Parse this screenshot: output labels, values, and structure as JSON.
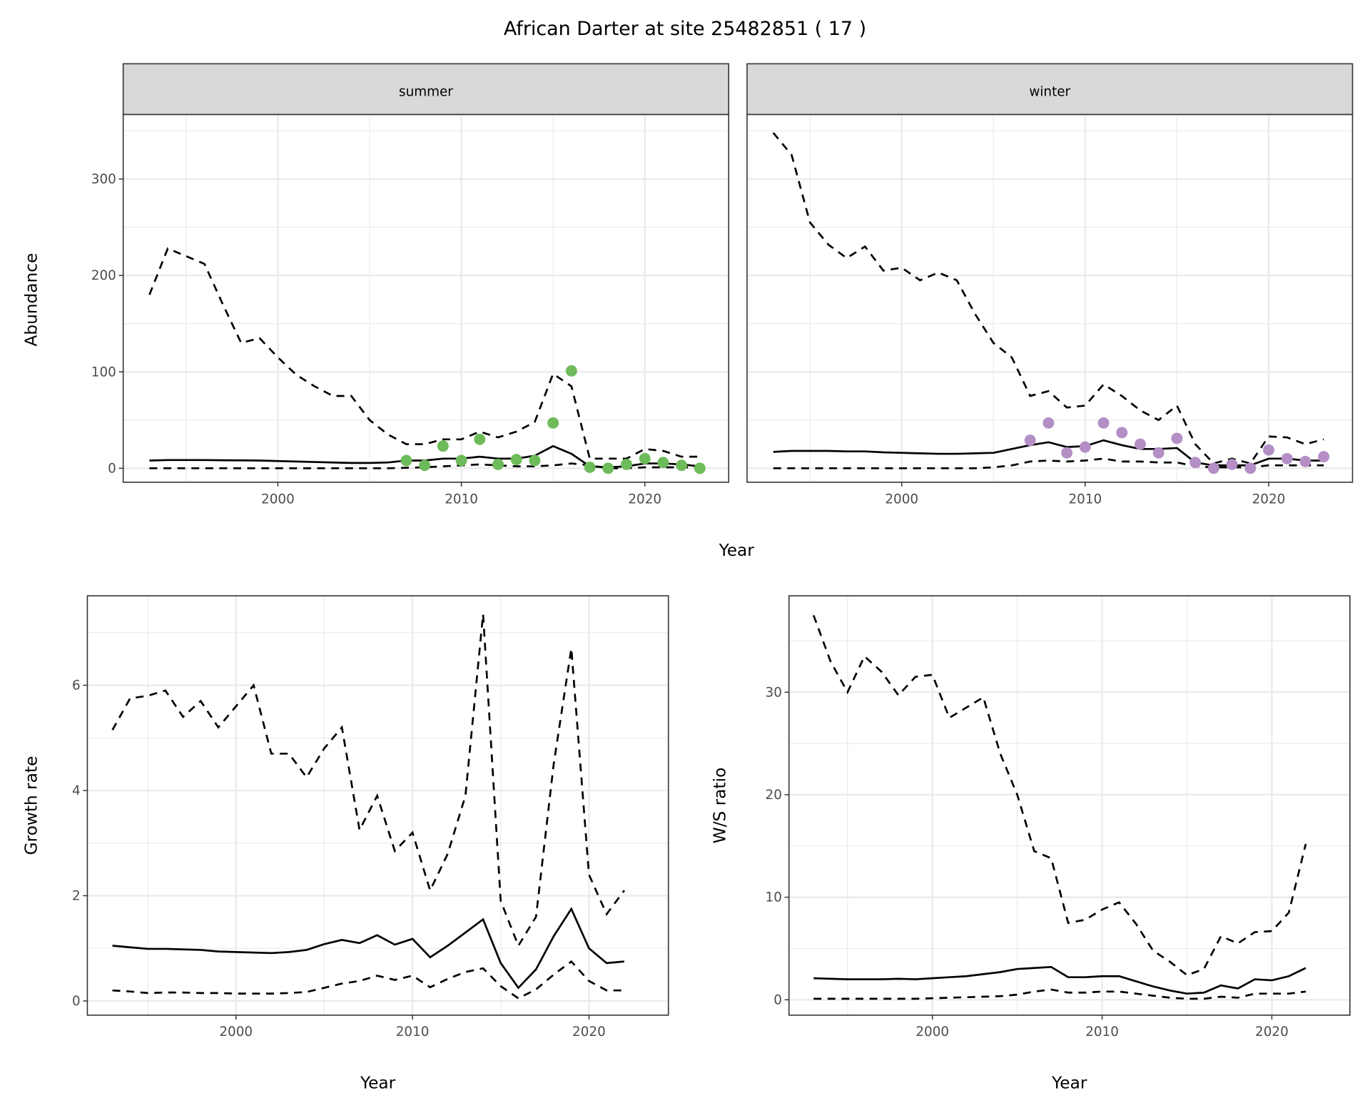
{
  "title": "African Darter at site 25482851 ( 17 )",
  "colors": {
    "summer": "#6dbb5a",
    "winter": "#b48fc6",
    "line": "#000000",
    "grid": "#ebebeb",
    "strip": "#d9d9d9"
  },
  "chart_data": [
    {
      "type": "line",
      "panel": "summer",
      "strip_label": "summer",
      "xlabel": "Year",
      "ylabel": "Abundance",
      "xlim": [
        1991.57,
        2024.57
      ],
      "ylim": [
        -14.5,
        367
      ],
      "xticks": [
        2000,
        2010,
        2020
      ],
      "yticks": [
        0,
        100,
        200,
        300
      ],
      "x": [
        1993,
        1994,
        1995,
        1996,
        1997,
        1998,
        1999,
        2000,
        2001,
        2002,
        2003,
        2004,
        2005,
        2006,
        2007,
        2008,
        2009,
        2010,
        2011,
        2012,
        2013,
        2014,
        2015,
        2016,
        2017,
        2018,
        2019,
        2020,
        2021,
        2022,
        2023
      ],
      "series": [
        {
          "name": "mean",
          "style": "solid",
          "values": [
            8,
            8.5,
            8.5,
            8.5,
            8.3,
            8.2,
            8,
            7.5,
            7,
            6.5,
            6,
            5.5,
            5.5,
            6,
            8,
            8,
            10,
            10,
            12,
            10,
            10,
            13,
            23,
            15,
            2,
            1,
            2,
            5,
            5,
            4,
            2
          ]
        },
        {
          "name": "upper",
          "style": "dashed",
          "values": [
            180,
            228,
            220,
            212,
            170,
            130,
            135,
            115,
            97,
            85,
            75,
            75,
            50,
            35,
            25,
            25,
            30,
            30,
            38,
            32,
            38,
            48,
            98,
            85,
            10,
            10,
            10,
            20,
            18,
            12,
            12
          ]
        },
        {
          "name": "lower",
          "style": "dashed",
          "values": [
            0,
            0,
            0,
            0,
            0,
            0,
            0,
            0,
            0,
            0,
            0,
            0,
            0,
            0,
            0.5,
            1,
            2,
            3,
            4,
            3,
            2,
            2,
            3,
            5,
            3,
            0,
            0,
            1,
            1,
            1,
            1
          ]
        }
      ],
      "points": {
        "x": [
          2007,
          2008,
          2009,
          2010,
          2011,
          2012,
          2013,
          2014,
          2015,
          2016,
          2017,
          2018,
          2019,
          2020,
          2021,
          2022,
          2023
        ],
        "y": [
          8,
          3,
          23,
          8,
          30,
          4,
          9,
          8,
          47,
          101,
          1,
          0,
          4,
          10,
          6,
          3,
          0
        ]
      }
    },
    {
      "type": "line",
      "panel": "winter",
      "strip_label": "winter",
      "xlim": [
        1991.57,
        2024.57
      ],
      "ylim": [
        -14.5,
        367
      ],
      "xticks": [
        2000,
        2010,
        2020
      ],
      "x": [
        1993,
        1994,
        1995,
        1996,
        1997,
        1998,
        1999,
        2000,
        2001,
        2002,
        2003,
        2004,
        2005,
        2006,
        2007,
        2008,
        2009,
        2010,
        2011,
        2012,
        2013,
        2014,
        2015,
        2016,
        2017,
        2018,
        2019,
        2020,
        2021,
        2022,
        2023
      ],
      "series": [
        {
          "name": "mean",
          "style": "solid",
          "values": [
            17,
            18,
            18,
            18,
            17.5,
            17.5,
            16.5,
            16,
            15.5,
            15,
            15,
            15.5,
            16,
            20,
            24,
            27,
            22,
            23,
            29,
            24,
            20,
            20,
            21,
            6,
            3,
            3,
            3,
            10,
            10,
            8,
            8
          ]
        },
        {
          "name": "upper",
          "style": "dashed",
          "values": [
            348,
            325,
            255,
            232,
            218,
            230,
            205,
            208,
            195,
            203,
            195,
            160,
            130,
            115,
            75,
            80,
            63,
            65,
            87,
            75,
            60,
            50,
            65,
            25,
            5,
            10,
            5,
            33,
            32,
            25,
            30
          ]
        },
        {
          "name": "lower",
          "style": "dashed",
          "values": [
            0,
            0,
            0,
            0,
            0,
            0,
            0,
            0,
            0,
            0,
            0,
            0,
            1,
            3,
            7,
            8,
            7,
            8,
            10,
            7,
            7,
            6,
            6,
            2,
            1,
            1,
            1,
            3,
            3,
            3,
            3
          ]
        }
      ],
      "points": {
        "x": [
          2007,
          2008,
          2009,
          2010,
          2011,
          2012,
          2013,
          2014,
          2015,
          2016,
          2017,
          2018,
          2019,
          2020,
          2021,
          2022,
          2023
        ],
        "y": [
          29,
          47,
          16,
          22,
          47,
          37,
          25,
          16,
          31,
          6,
          0,
          4,
          0,
          19,
          10,
          7,
          12
        ]
      }
    },
    {
      "type": "line",
      "panel": "growth",
      "xlabel": "Year",
      "ylabel": "Growth rate",
      "xlim": [
        1991.58,
        2024.5
      ],
      "ylim": [
        -0.27,
        7.7
      ],
      "xticks": [
        2000,
        2010,
        2020
      ],
      "yticks": [
        0,
        2,
        4,
        6
      ],
      "x": [
        1993,
        1994,
        1995,
        1996,
        1997,
        1998,
        1999,
        2000,
        2001,
        2002,
        2003,
        2004,
        2005,
        2006,
        2007,
        2008,
        2009,
        2010,
        2011,
        2012,
        2013,
        2014,
        2015,
        2016,
        2017,
        2018,
        2019,
        2020,
        2021,
        2022
      ],
      "series": [
        {
          "name": "mean",
          "style": "solid",
          "values": [
            1.05,
            1.02,
            0.99,
            0.99,
            0.98,
            0.97,
            0.94,
            0.93,
            0.92,
            0.91,
            0.93,
            0.97,
            1.08,
            1.16,
            1.1,
            1.25,
            1.07,
            1.18,
            0.83,
            1.05,
            1.3,
            1.55,
            0.72,
            0.25,
            0.6,
            1.23,
            1.75,
            1.0,
            0.72,
            0.75
          ]
        },
        {
          "name": "upper",
          "style": "dashed",
          "values": [
            5.15,
            5.75,
            5.8,
            5.9,
            5.4,
            5.7,
            5.2,
            5.6,
            6.0,
            4.7,
            4.7,
            4.25,
            4.8,
            5.2,
            3.25,
            3.9,
            2.85,
            3.2,
            2.1,
            2.8,
            3.9,
            7.35,
            1.9,
            1.05,
            1.6,
            4.5,
            6.7,
            2.4,
            1.65,
            2.1
          ]
        },
        {
          "name": "lower",
          "style": "dashed",
          "values": [
            0.2,
            0.18,
            0.15,
            0.16,
            0.16,
            0.15,
            0.15,
            0.14,
            0.14,
            0.14,
            0.15,
            0.17,
            0.25,
            0.33,
            0.38,
            0.48,
            0.4,
            0.48,
            0.26,
            0.42,
            0.55,
            0.62,
            0.28,
            0.05,
            0.22,
            0.5,
            0.75,
            0.38,
            0.2,
            0.2
          ]
        }
      ]
    },
    {
      "type": "line",
      "panel": "ws",
      "xlabel": "Year",
      "ylabel": "W/S ratio",
      "xlim": [
        1991.55,
        2024.6
      ],
      "ylim": [
        -1.5,
        39.4
      ],
      "xticks": [
        2000,
        2010,
        2020
      ],
      "yticks": [
        0,
        10,
        20,
        30
      ],
      "x": [
        1993,
        1994,
        1995,
        1996,
        1997,
        1998,
        1999,
        2000,
        2001,
        2002,
        2003,
        2004,
        2005,
        2006,
        2007,
        2008,
        2009,
        2010,
        2011,
        2012,
        2013,
        2014,
        2015,
        2016,
        2017,
        2018,
        2019,
        2020,
        2021,
        2022
      ],
      "series": [
        {
          "name": "mean",
          "style": "solid",
          "values": [
            2.1,
            2.05,
            2.0,
            2.0,
            2.0,
            2.05,
            2.0,
            2.1,
            2.2,
            2.3,
            2.5,
            2.7,
            3.0,
            3.1,
            3.2,
            2.2,
            2.2,
            2.3,
            2.3,
            1.8,
            1.3,
            0.9,
            0.6,
            0.7,
            1.4,
            1.1,
            2.0,
            1.9,
            2.3,
            3.1
          ]
        },
        {
          "name": "upper",
          "style": "dashed",
          "values": [
            37.5,
            33,
            30,
            33.5,
            32,
            29.7,
            31.5,
            31.7,
            27.5,
            28.5,
            29.5,
            24,
            20,
            14.5,
            13.8,
            7.5,
            7.8,
            8.8,
            9.5,
            7.4,
            4.8,
            3.7,
            2.4,
            3.0,
            6.2,
            5.5,
            6.6,
            6.7,
            8.5,
            15.2
          ]
        },
        {
          "name": "lower",
          "style": "dashed",
          "values": [
            0.1,
            0.1,
            0.1,
            0.1,
            0.1,
            0.1,
            0.1,
            0.15,
            0.2,
            0.25,
            0.3,
            0.35,
            0.5,
            0.8,
            1.0,
            0.7,
            0.7,
            0.8,
            0.8,
            0.6,
            0.4,
            0.2,
            0.1,
            0.1,
            0.3,
            0.2,
            0.6,
            0.6,
            0.6,
            0.8
          ]
        }
      ]
    }
  ]
}
